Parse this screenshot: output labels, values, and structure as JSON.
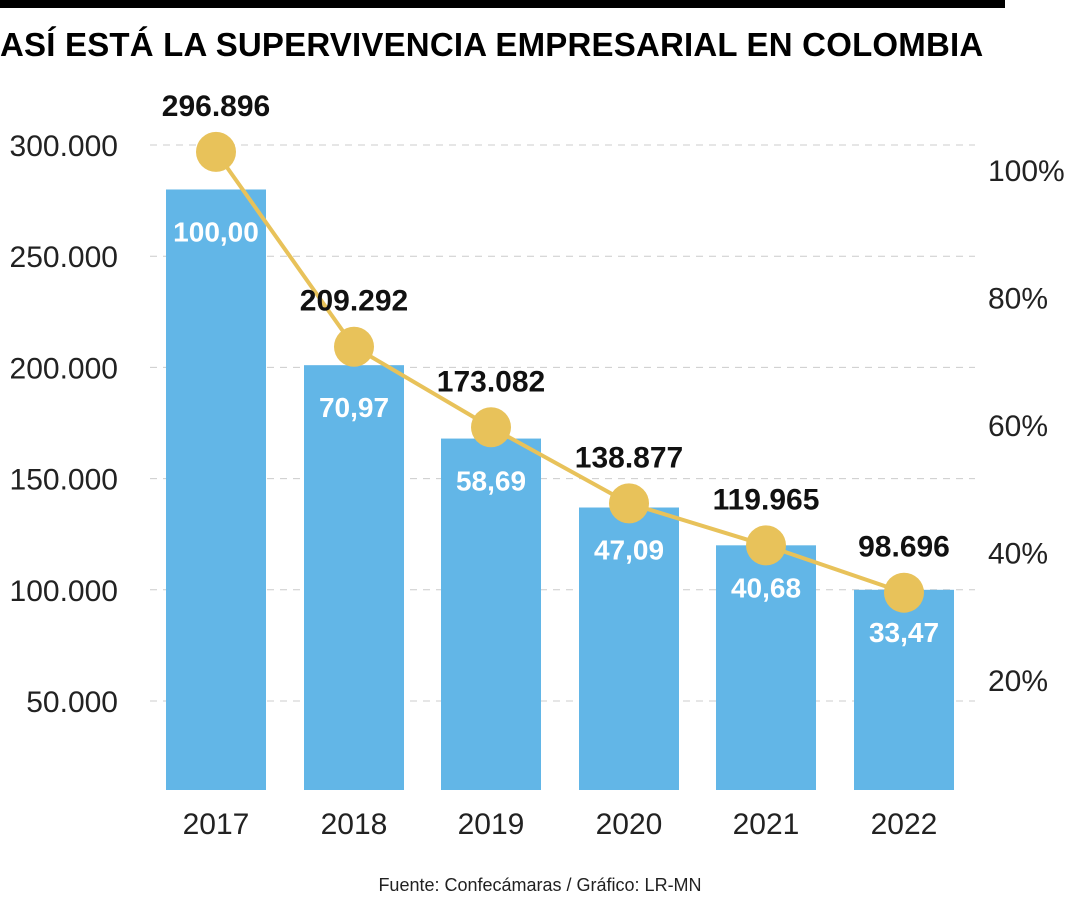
{
  "title": "ASÍ ESTÁ LA SUPERVIVENCIA EMPRESARIAL EN COLOMBIA",
  "source": "Fuente: Confecámaras / Gráfico: LR-MN",
  "colors": {
    "bar": "#62b6e7",
    "line": "#e8c25a",
    "grid": "#cccccc",
    "text": "#111111",
    "bar_label": "#ffffff"
  },
  "chart_data": {
    "type": "bar",
    "categories": [
      "2017",
      "2018",
      "2019",
      "2020",
      "2021",
      "2022"
    ],
    "series": [
      {
        "type": "bar",
        "axis": "left",
        "values": [
          280000,
          201000,
          168000,
          137000,
          120000,
          100000
        ],
        "labels": [
          "100,00",
          "70,97",
          "58,69",
          "47,09",
          "40,68",
          "33,47"
        ]
      },
      {
        "type": "line",
        "axis": "left",
        "values": [
          296896,
          209292,
          173082,
          138877,
          119965,
          98696
        ],
        "labels": [
          "296.896",
          "209.292",
          "173.082",
          "138.877",
          "119.965",
          "98.696"
        ]
      }
    ],
    "y_left": {
      "ylim": [
        10000,
        300000
      ],
      "ticks": [
        50000,
        100000,
        150000,
        200000,
        250000,
        300000
      ],
      "tick_labels": [
        "50.000",
        "100.000",
        "150.000",
        "200.000",
        "250.000",
        "300.000"
      ]
    },
    "y_right": {
      "ticks": [
        20,
        40,
        60,
        80,
        100
      ],
      "tick_labels": [
        "20%",
        "40%",
        "60%",
        "80%",
        "100%"
      ]
    },
    "grid": true,
    "legend": "none"
  }
}
